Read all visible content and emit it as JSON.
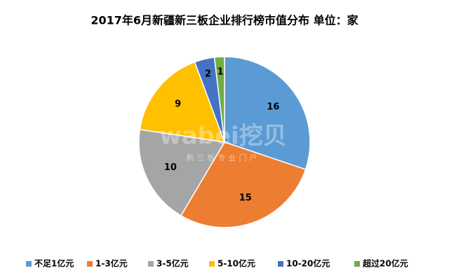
{
  "chart_data": {
    "type": "pie",
    "title": "2017年6月新疆新三板企业排行榜市值分布  单位：家",
    "watermark": "wabei挖贝",
    "watermark_subtitle": "新三板专业门户",
    "categories": [
      "不足1亿元",
      "1-3亿元",
      "3-5亿元",
      "5-10亿元",
      "10-20亿元",
      "超过20亿元"
    ],
    "values": [
      16,
      15,
      10,
      9,
      2,
      1
    ],
    "colors": [
      "#5b9bd5",
      "#ed7d31",
      "#a5a5a5",
      "#ffc000",
      "#4472c4",
      "#70ad47"
    ],
    "legend": "bottom"
  }
}
